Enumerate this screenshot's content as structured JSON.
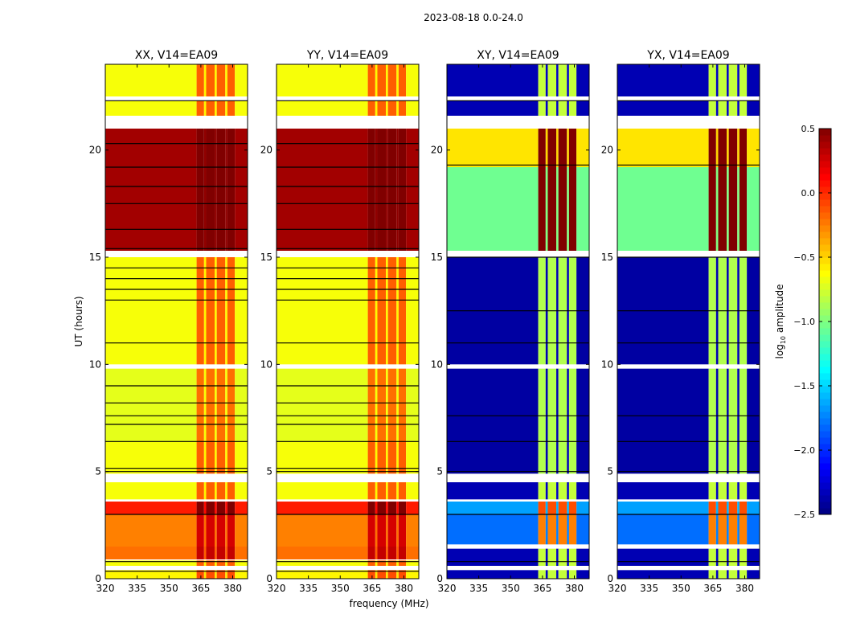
{
  "chart_data": {
    "type": "heatmap",
    "suptitle": "2023-08-18 0.0-24.0",
    "xlabel": "frequency (MHz)",
    "ylabel": "UT (hours)",
    "xlim": [
      320,
      387
    ],
    "ylim": [
      0,
      24
    ],
    "xticks": [
      "320",
      "335",
      "350",
      "365",
      "380"
    ],
    "xtick_values": [
      320,
      335,
      350,
      365,
      380
    ],
    "yticks": [
      "0",
      "5",
      "10",
      "15",
      "20"
    ],
    "ytick_values": [
      0,
      5,
      10,
      15,
      20
    ],
    "colorbar": {
      "label": "log10 amplitude",
      "label_main": "log",
      "label_sub": "10",
      "label_rest": " amplitude",
      "range": [
        -2.5,
        0.5
      ],
      "ticks": [
        "0.5",
        "0.0",
        "−0.5",
        "−1.0",
        "−1.5",
        "−2.0",
        "−2.5"
      ],
      "tick_values": [
        0.5,
        0.0,
        -0.5,
        -1.0,
        -1.5,
        -2.0,
        -2.5
      ],
      "colormap": "jet"
    },
    "rfi_channels_mhz": [
      [
        363,
        366.5
      ],
      [
        367.5,
        371.5
      ],
      [
        372.5,
        376.5
      ],
      [
        377.5,
        381
      ]
    ],
    "panels": [
      {
        "title": "XX, V14=EA09",
        "rfi_offset": 0.45,
        "bands": [
          [
            0,
            0.4,
            -0.55
          ],
          [
            0.6,
            0.85,
            -0.6
          ],
          [
            0.9,
            1.5,
            -0.15
          ],
          [
            1.5,
            3.0,
            -0.2
          ],
          [
            3.0,
            3.6,
            0.1
          ],
          [
            3.7,
            4.5,
            -0.6
          ],
          [
            4.9,
            6.4,
            -0.6
          ],
          [
            6.4,
            9.8,
            -0.65
          ],
          [
            10.0,
            15.0,
            -0.6
          ],
          [
            15.3,
            21.0,
            0.45
          ],
          [
            21.6,
            22.3,
            -0.6
          ],
          [
            22.5,
            24,
            -0.6
          ]
        ],
        "lines": [
          0.8,
          0.35,
          3.0,
          5.0,
          5.15,
          6.4,
          7.2,
          7.6,
          8.2,
          9.0,
          11.0,
          13.0,
          13.5,
          14.0,
          14.5,
          15.4,
          16.3,
          17.5,
          18.3,
          19.2,
          20.3,
          22.3
        ]
      },
      {
        "title": "YY, V14=EA09",
        "rfi_offset": 0.45,
        "bands": [
          [
            0,
            0.4,
            -0.55
          ],
          [
            0.6,
            0.85,
            -0.6
          ],
          [
            0.9,
            1.5,
            -0.15
          ],
          [
            1.5,
            3.0,
            -0.2
          ],
          [
            3.0,
            3.6,
            0.1
          ],
          [
            3.7,
            4.5,
            -0.6
          ],
          [
            4.9,
            6.4,
            -0.6
          ],
          [
            6.4,
            9.8,
            -0.65
          ],
          [
            10.0,
            15.0,
            -0.6
          ],
          [
            15.3,
            21.0,
            0.45
          ],
          [
            21.6,
            22.3,
            -0.6
          ],
          [
            22.5,
            24,
            -0.6
          ]
        ],
        "lines": [
          0.8,
          0.35,
          3.0,
          5.0,
          5.15,
          6.4,
          7.2,
          7.6,
          8.2,
          9.0,
          11.0,
          13.0,
          13.5,
          14.0,
          14.5,
          15.4,
          16.3,
          17.5,
          18.3,
          19.2,
          20.3,
          22.3
        ]
      },
      {
        "title": "XY, V14=EA09",
        "rfi_offset": 1.5,
        "bands": [
          [
            0,
            0.4,
            -2.3
          ],
          [
            0.6,
            1.4,
            -2.3
          ],
          [
            1.6,
            3.0,
            -1.75
          ],
          [
            3.0,
            3.6,
            -1.6
          ],
          [
            3.7,
            4.5,
            -2.3
          ],
          [
            4.9,
            6.4,
            -2.35
          ],
          [
            6.4,
            9.8,
            -2.35
          ],
          [
            10.0,
            15.0,
            -2.35
          ],
          [
            15.3,
            19.2,
            -1.0
          ],
          [
            19.2,
            21.0,
            -0.5
          ],
          [
            21.6,
            22.3,
            -2.3
          ],
          [
            22.5,
            24,
            -2.3
          ]
        ],
        "lines": [
          0.8,
          3.0,
          5.0,
          6.4,
          7.6,
          11.0,
          12.5,
          15.0,
          19.3,
          22.3
        ]
      },
      {
        "title": "YX, V14=EA09",
        "rfi_offset": 1.5,
        "bands": [
          [
            0,
            0.4,
            -2.3
          ],
          [
            0.6,
            1.4,
            -2.3
          ],
          [
            1.6,
            3.0,
            -1.75
          ],
          [
            3.0,
            3.6,
            -1.6
          ],
          [
            3.7,
            4.5,
            -2.3
          ],
          [
            4.9,
            6.4,
            -2.35
          ],
          [
            6.4,
            9.8,
            -2.35
          ],
          [
            10.0,
            15.0,
            -2.35
          ],
          [
            15.3,
            19.2,
            -1.0
          ],
          [
            19.2,
            21.0,
            -0.5
          ],
          [
            21.6,
            22.3,
            -2.3
          ],
          [
            22.5,
            24,
            -2.3
          ]
        ],
        "lines": [
          0.8,
          3.0,
          5.0,
          6.4,
          7.6,
          11.0,
          12.5,
          15.0,
          19.3,
          22.3
        ]
      }
    ]
  }
}
